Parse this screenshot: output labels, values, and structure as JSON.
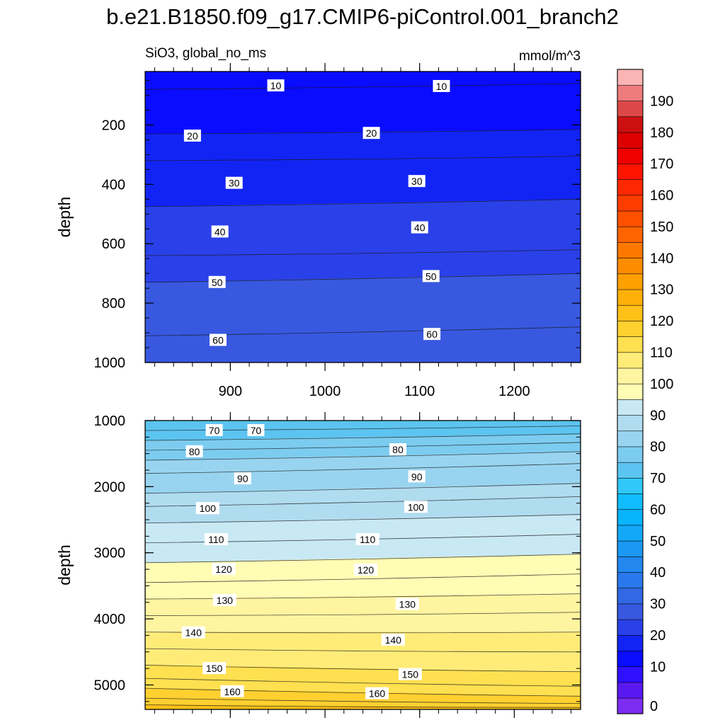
{
  "figure": {
    "title": "b.e21.B1850.f09_g17.CMIP6-piControl.001_branch2",
    "left_label": "SiO3, global_no_ms",
    "right_label": "mmol/m^3"
  },
  "chart_data": [
    {
      "type": "heatmap",
      "panel": "upper",
      "ylabel": "depth",
      "xlim": [
        810,
        1270
      ],
      "ylim": [
        1000,
        20
      ],
      "y_reversed": true,
      "x_ticks": [
        "900",
        "1000",
        "1100",
        "1200"
      ],
      "y_ticks": [
        "200",
        "400",
        "600",
        "800",
        "1000"
      ],
      "contour_levels": [
        10,
        20,
        30,
        40,
        50,
        60
      ],
      "contour_depth_left": [
        80,
        230,
        320,
        475,
        640,
        730,
        910
      ],
      "contour_depth_right": [
        60,
        215,
        305,
        450,
        620,
        700,
        880
      ],
      "contour_labels": [
        {
          "text": "10",
          "x": 948,
          "depth": 68
        },
        {
          "text": "10",
          "x": 1123,
          "depth": 70
        },
        {
          "text": "20",
          "x": 860,
          "depth": 237
        },
        {
          "text": "20",
          "x": 1049,
          "depth": 228
        },
        {
          "text": "30",
          "x": 904,
          "depth": 396
        },
        {
          "text": "30",
          "x": 1097,
          "depth": 390
        },
        {
          "text": "40",
          "x": 889,
          "depth": 560
        },
        {
          "text": "40",
          "x": 1100,
          "depth": 546
        },
        {
          "text": "50",
          "x": 886,
          "depth": 730
        },
        {
          "text": "50",
          "x": 1112,
          "depth": 710
        },
        {
          "text": "60",
          "x": 887,
          "depth": 925
        },
        {
          "text": "60",
          "x": 1113,
          "depth": 905
        }
      ]
    },
    {
      "type": "heatmap",
      "panel": "lower",
      "ylabel": "depth",
      "xlim": [
        810,
        1270
      ],
      "ylim": [
        5370,
        1000
      ],
      "y_reversed": true,
      "y_ticks": [
        "1000",
        "2000",
        "3000",
        "4000",
        "5000"
      ],
      "contour_levels": [
        70,
        80,
        90,
        100,
        110,
        120,
        130,
        140,
        150,
        160
      ],
      "contour_depth_left": [
        1150,
        1300,
        1450,
        1600,
        1800,
        2100,
        2300,
        2550,
        2850,
        3150,
        3450,
        3700,
        3950,
        4200,
        4450,
        4700,
        4900,
        5050,
        5200,
        5300
      ],
      "contour_depth_right": [
        1080,
        1200,
        1330,
        1470,
        1650,
        1950,
        2150,
        2420,
        2720,
        3020,
        3320,
        3620,
        3900,
        4200,
        4500,
        4800,
        5020,
        5170,
        5280,
        5340
      ],
      "contour_labels": [
        {
          "text": "70",
          "x": 883,
          "depth": 1150
        },
        {
          "text": "70",
          "x": 927,
          "depth": 1150
        },
        {
          "text": "80",
          "x": 862,
          "depth": 1470
        },
        {
          "text": "80",
          "x": 1077,
          "depth": 1440
        },
        {
          "text": "90",
          "x": 913,
          "depth": 1880
        },
        {
          "text": "90",
          "x": 1097,
          "depth": 1850
        },
        {
          "text": "100",
          "x": 876,
          "depth": 2330
        },
        {
          "text": "100",
          "x": 1096,
          "depth": 2310
        },
        {
          "text": "110",
          "x": 885,
          "depth": 2800
        },
        {
          "text": "110",
          "x": 1045,
          "depth": 2800
        },
        {
          "text": "120",
          "x": 893,
          "depth": 3250
        },
        {
          "text": "120",
          "x": 1043,
          "depth": 3260
        },
        {
          "text": "130",
          "x": 894,
          "depth": 3720
        },
        {
          "text": "130",
          "x": 1087,
          "depth": 3780
        },
        {
          "text": "140",
          "x": 861,
          "depth": 4210
        },
        {
          "text": "140",
          "x": 1072,
          "depth": 4320
        },
        {
          "text": "150",
          "x": 883,
          "depth": 4750
        },
        {
          "text": "150",
          "x": 1090,
          "depth": 4840
        },
        {
          "text": "160",
          "x": 902,
          "depth": 5100
        },
        {
          "text": "160",
          "x": 1055,
          "depth": 5130
        }
      ]
    }
  ],
  "colorbar": {
    "labels": [
      "0",
      "10",
      "20",
      "30",
      "40",
      "50",
      "60",
      "70",
      "80",
      "90",
      "100",
      "110",
      "120",
      "130",
      "140",
      "150",
      "160",
      "170",
      "180",
      "190"
    ],
    "colors": [
      "#7b2cf0",
      "#5a18f0",
      "#2f10ff",
      "#0a0cff",
      "#1224f4",
      "#2a40e8",
      "#3858e0",
      "#3268e4",
      "#2a78ec",
      "#2288f0",
      "#1a98f4",
      "#12a8f8",
      "#08b4fc",
      "#10bcfc",
      "#30c8f8",
      "#5cc4f0",
      "#7cccf0",
      "#98d4f0",
      "#b0dcf0",
      "#c8e8f4",
      "#fffcb4",
      "#fff4a0",
      "#ffec78",
      "#ffe050",
      "#ffd030",
      "#ffc018",
      "#ffb008",
      "#ffa000",
      "#ff8c00",
      "#ff7800",
      "#ff6400",
      "#ff5000",
      "#ff3c00",
      "#ff2800",
      "#ff1400",
      "#f00000",
      "#dc0000",
      "#cc1010",
      "#dc4848",
      "#ee7c7c",
      "#fab4b4"
    ]
  }
}
